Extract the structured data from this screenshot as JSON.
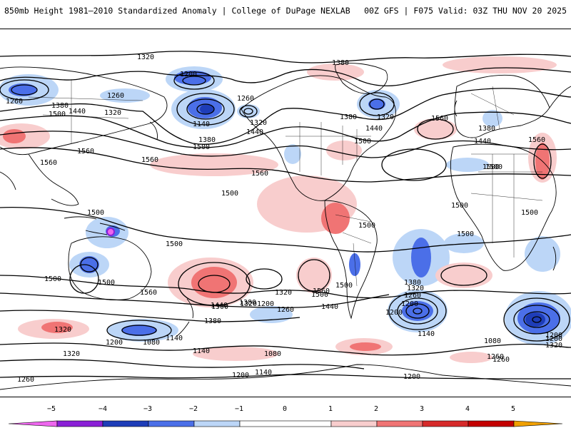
{
  "header": {
    "title_left": "850mb Height 1981–2010 Standardized Anomaly | College of DuPage NEXLAB",
    "title_right": "00Z GFS | F075 Valid: 03Z THU NOV 20 2025"
  },
  "map": {
    "contour_labels": [
      "1320",
      "1200",
      "1260",
      "1260",
      "1380",
      "1500",
      "1440",
      "1320",
      "1260",
      "1140",
      "1320",
      "1380",
      "1500",
      "1440",
      "1380",
      "1320",
      "1380",
      "1440",
      "1500",
      "1560",
      "1380",
      "1440",
      "1500",
      "1560",
      "1560",
      "1560",
      "1560",
      "1560",
      "1500",
      "1500",
      "1500",
      "1500",
      "1500",
      "1500",
      "1500",
      "1500",
      "1500",
      "1500",
      "1440",
      "1560",
      "1500",
      "1440",
      "1320",
      "1380",
      "1200",
      "1260",
      "1560",
      "1500",
      "1380",
      "1320",
      "1260",
      "1200",
      "1140",
      "1200",
      "1260",
      "1080",
      "1200",
      "1140",
      "1500",
      "1380",
      "1320",
      "1320",
      "1200",
      "1080",
      "1140",
      "1080",
      "1320",
      "1260",
      "1140",
      "1200",
      "1200",
      "1200",
      "1320",
      "1260"
    ]
  },
  "colorbar": {
    "ticks": [
      "−5",
      "−4",
      "−3",
      "−2",
      "−1",
      "0",
      "1",
      "2",
      "3",
      "4",
      "5"
    ],
    "colors": {
      "m5": "#ee66ee",
      "m4": "#8a1fd6",
      "m3": "#1e3db8",
      "m2": "#4b6fe8",
      "m1": "#bcd6f7",
      "z": "#ffffff",
      "p1": "#f8cdcd",
      "p2": "#f07474",
      "p3": "#d62a2a",
      "p4": "#c40000",
      "p5": "#f0a000"
    }
  }
}
